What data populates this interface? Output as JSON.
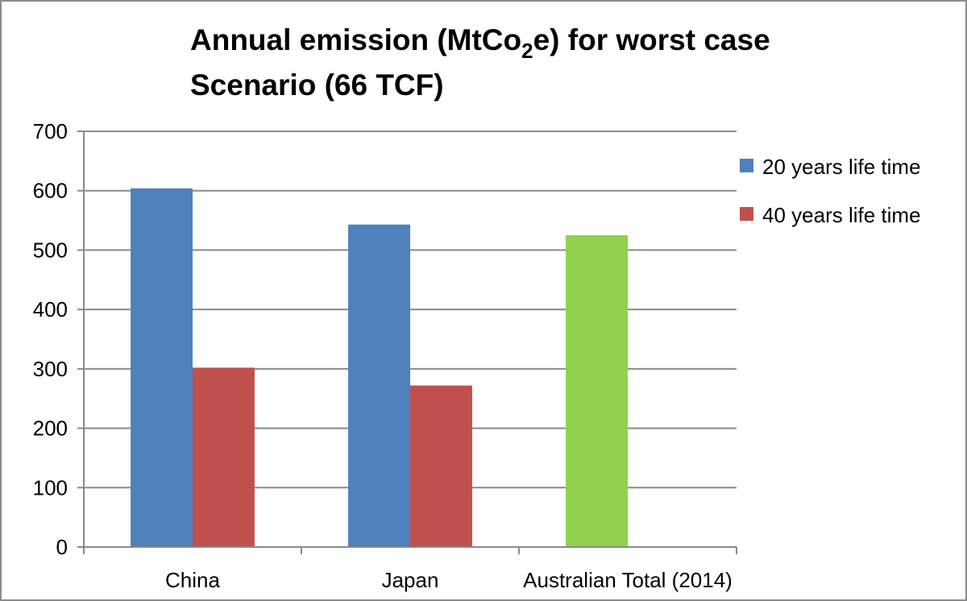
{
  "chart_data": {
    "type": "bar",
    "title": {
      "line1_before": "Annual emission (MtCo",
      "line1_sub": "2",
      "line1_after": "e) for worst case",
      "line2": "Scenario  (66 TCF)"
    },
    "categories": [
      "China",
      "Japan",
      "Australian Total (2014)"
    ],
    "series": [
      {
        "name": "20 years life time",
        "color": "#4f81bd",
        "values": [
          604,
          543,
          null
        ]
      },
      {
        "name": "40 years life time",
        "color": "#c0504d",
        "values": [
          302,
          272,
          null
        ]
      },
      {
        "name": "",
        "color": "#92d050",
        "values": [
          null,
          null,
          525
        ]
      }
    ],
    "ylim": [
      0,
      700
    ],
    "yticks": [
      0,
      100,
      200,
      300,
      400,
      500,
      600,
      700
    ],
    "xlabel": "",
    "ylabel": "",
    "grid": true,
    "legend_position": "right"
  }
}
